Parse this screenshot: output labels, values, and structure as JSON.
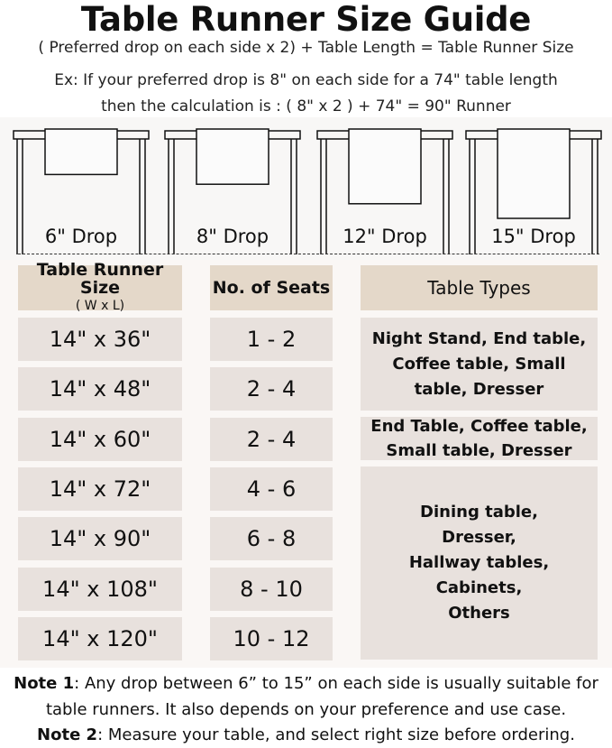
{
  "title": "Table Runner Size Guide",
  "formula": "( Preferred drop on each side x 2) + Table Length = Table Runner Size",
  "example_line1": "Ex: If your preferred drop is 8\" on each side for a 74\" table length",
  "example_line2": "then the calculation is : ( 8\" x 2 ) + 74\" = 90\" Runner",
  "drops": [
    {
      "label": "6\" Drop",
      "inches": 6
    },
    {
      "label": "8\" Drop",
      "inches": 8
    },
    {
      "label": "12\" Drop",
      "inches": 12
    },
    {
      "label": "15\" Drop",
      "inches": 15
    }
  ],
  "table": {
    "headers": {
      "size": "Table Runner Size",
      "size_sub": "( W x L)",
      "seats": "No. of Seats",
      "types": "Table Types"
    },
    "rows": [
      {
        "size": "14\" x 36\"",
        "seats": "1 - 2"
      },
      {
        "size": "14\" x 48\"",
        "seats": "2 - 4"
      },
      {
        "size": "14\" x 60\"",
        "seats": "2 - 4"
      },
      {
        "size": "14\" x 72\"",
        "seats": "4 - 6"
      },
      {
        "size": "14\" x 90\"",
        "seats": "6 - 8"
      },
      {
        "size": "14\" x 108\"",
        "seats": "8 - 10"
      },
      {
        "size": "14\" x 120\"",
        "seats": "10 - 12"
      }
    ],
    "types": [
      "Night Stand, End table, Coffee table, Small table, Dresser",
      "End Table, Coffee table, Small table, Dresser",
      "Dining table, Dresser, Hallway tables, Cabinets, Others"
    ]
  },
  "notes": [
    {
      "label": "Note 1",
      "text": ": Any drop between 6” to 15” on each side is usually suitable for table runners. It also depends on your preference and use case."
    },
    {
      "label": "Note 2",
      "text": ": Measure your table, and select right size before ordering."
    }
  ],
  "colors": {
    "header_cell": "#e4d8c9",
    "body_cell": "#e8e1dd",
    "panel": "#faf7f5"
  }
}
